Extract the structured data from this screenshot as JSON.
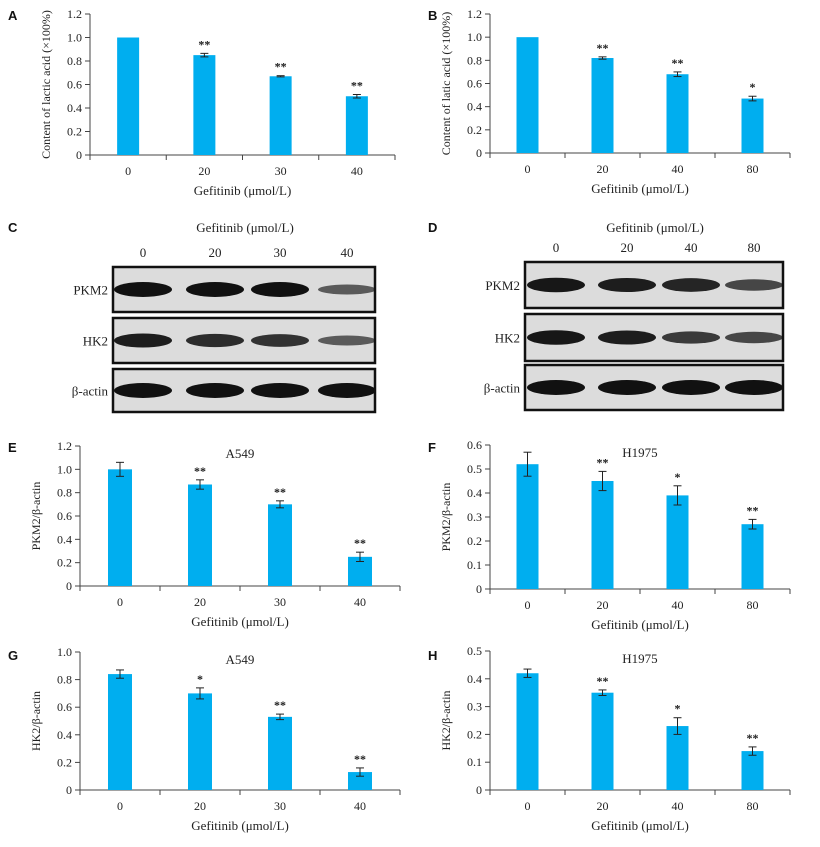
{
  "figure": {
    "colors": {
      "bar": "#00aeef",
      "axis": "#444444",
      "band": "#111111"
    }
  },
  "chart_data": [
    {
      "panel": "A",
      "type": "bar",
      "title": "",
      "xlabel": "Gefitinib (μmol/L)",
      "ylabel": "Content of lactic acid (×100%)",
      "categories": [
        "0",
        "20",
        "30",
        "40"
      ],
      "values": [
        1.0,
        0.85,
        0.67,
        0.5
      ],
      "errors": [
        0.0,
        0.015,
        0.005,
        0.015
      ],
      "significance": [
        "",
        "**",
        "**",
        "**"
      ],
      "ylim": [
        0,
        1.2
      ],
      "yticks": [
        "0",
        "0.2",
        "0.4",
        "0.6",
        "0.8",
        "1.0",
        "1.2"
      ],
      "grid": false
    },
    {
      "panel": "B",
      "type": "bar",
      "title": "",
      "xlabel": "Gefitinib (μmol/L)",
      "ylabel": "Content of latic acid (×100%)",
      "categories": [
        "0",
        "20",
        "40",
        "80"
      ],
      "values": [
        1.0,
        0.82,
        0.68,
        0.47
      ],
      "errors": [
        0.0,
        0.01,
        0.02,
        0.02
      ],
      "significance": [
        "",
        "**",
        "**",
        "*"
      ],
      "ylim": [
        0,
        1.2
      ],
      "yticks": [
        "0",
        "0.2",
        "0.4",
        "0.6",
        "0.8",
        "1.0",
        "1.2"
      ],
      "grid": false
    },
    {
      "panel": "E",
      "type": "bar",
      "title": "A549",
      "xlabel": "Gefitinib (μmol/L)",
      "ylabel": "PKM2/β-actin",
      "categories": [
        "0",
        "20",
        "30",
        "40"
      ],
      "values": [
        1.0,
        0.87,
        0.7,
        0.25
      ],
      "errors": [
        0.06,
        0.04,
        0.03,
        0.04
      ],
      "significance": [
        "",
        "**",
        "**",
        "**"
      ],
      "ylim": [
        0,
        1.2
      ],
      "yticks": [
        "0",
        "0.2",
        "0.4",
        "0.6",
        "0.8",
        "1.0",
        "1.2"
      ],
      "grid": false
    },
    {
      "panel": "F",
      "type": "bar",
      "title": "H1975",
      "xlabel": "Gefitinib (μmol/L)",
      "ylabel": "PKM2/β-actin",
      "categories": [
        "0",
        "20",
        "40",
        "80"
      ],
      "values": [
        0.52,
        0.45,
        0.39,
        0.27
      ],
      "errors": [
        0.05,
        0.04,
        0.04,
        0.02
      ],
      "significance": [
        "",
        "**",
        "*",
        "**"
      ],
      "ylim": [
        0,
        0.6
      ],
      "yticks": [
        "0",
        "0.1",
        "0.2",
        "0.3",
        "0.4",
        "0.5",
        "0.6"
      ],
      "grid": false
    },
    {
      "panel": "G",
      "type": "bar",
      "title": "A549",
      "xlabel": "Gefitinib (μmol/L)",
      "ylabel": "HK2/β-actin",
      "categories": [
        "0",
        "20",
        "30",
        "40"
      ],
      "values": [
        0.84,
        0.7,
        0.53,
        0.13
      ],
      "errors": [
        0.03,
        0.04,
        0.02,
        0.03
      ],
      "significance": [
        "",
        "*",
        "**",
        "**"
      ],
      "ylim": [
        0,
        1.0
      ],
      "yticks": [
        "0",
        "0.2",
        "0.4",
        "0.6",
        "0.8",
        "1.0"
      ],
      "grid": false
    },
    {
      "panel": "H",
      "type": "bar",
      "title": "H1975",
      "xlabel": "Gefitinib (μmol/L)",
      "ylabel": "HK2/β-actin",
      "categories": [
        "0",
        "20",
        "40",
        "80"
      ],
      "values": [
        0.42,
        0.35,
        0.23,
        0.14
      ],
      "errors": [
        0.015,
        0.01,
        0.03,
        0.015
      ],
      "significance": [
        "",
        "**",
        "*",
        "**"
      ],
      "ylim": [
        0,
        0.5
      ],
      "yticks": [
        "0",
        "0.1",
        "0.2",
        "0.3",
        "0.4",
        "0.5"
      ],
      "grid": false
    }
  ],
  "blots": [
    {
      "panel": "C",
      "treatment_label": "Gefitinib (μmol/L)",
      "doses": [
        "0",
        "20",
        "30",
        "40"
      ],
      "rows": [
        {
          "label": "PKM2",
          "intensity": [
            1.0,
            1.0,
            1.0,
            0.45
          ]
        },
        {
          "label": "HK2",
          "intensity": [
            0.9,
            0.8,
            0.75,
            0.45
          ]
        },
        {
          "label": "β-actin",
          "intensity": [
            1.0,
            1.0,
            1.0,
            1.0
          ]
        }
      ]
    },
    {
      "panel": "D",
      "treatment_label": "Gefitinib (μmol/L)",
      "doses": [
        "0",
        "20",
        "40",
        "80"
      ],
      "rows": [
        {
          "label": "PKM2",
          "intensity": [
            0.95,
            0.9,
            0.85,
            0.6
          ]
        },
        {
          "label": "HK2",
          "intensity": [
            0.95,
            0.9,
            0.7,
            0.6
          ]
        },
        {
          "label": "β-actin",
          "intensity": [
            1.0,
            1.0,
            1.0,
            1.0
          ]
        }
      ]
    }
  ]
}
